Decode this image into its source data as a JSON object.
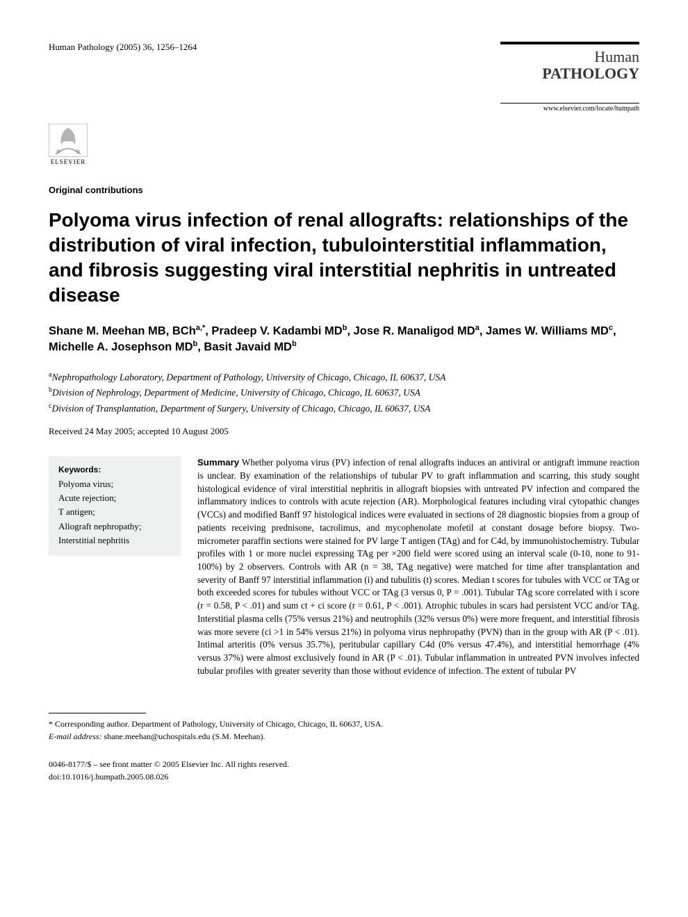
{
  "header": {
    "journal_ref": "Human Pathology (2005) 36, 1256–1264",
    "journal_name_line1": "Human",
    "journal_name_line2": "PATHOLOGY",
    "journal_url": "www.elsevier.com/locate/humpath",
    "publisher": "ELSEVIER"
  },
  "section_label": "Original contributions",
  "title": "Polyoma virus infection of renal allografts: relationships of the distribution of viral infection, tubulointerstitial inflammation, and fibrosis suggesting viral interstitial nephritis in untreated disease",
  "authors_html": "Shane M. Meehan MB, BCh<sup>a,*</sup>, Pradeep V. Kadambi MD<sup>b</sup>, Jose R. Manaligod MD<sup>a</sup>, James W. Williams MD<sup>c</sup>, Michelle A. Josephson MD<sup>b</sup>, Basit Javaid MD<sup>b</sup>",
  "affiliations": [
    {
      "sup": "a",
      "text": "Nephropathology Laboratory, Department of Pathology, University of Chicago, Chicago, IL 60637, USA"
    },
    {
      "sup": "b",
      "text": "Division of Nephrology, Department of Medicine, University of Chicago, Chicago, IL 60637, USA"
    },
    {
      "sup": "c",
      "text": "Division of Transplantation, Department of Surgery, University of Chicago, Chicago, IL 60637, USA"
    }
  ],
  "dates": "Received 24 May 2005; accepted 10 August 2005",
  "keywords": {
    "heading": "Keywords:",
    "list": "Polyoma virus;\nAcute rejection;\nT antigen;\nAllograft nephropathy;\nInterstitial nephritis"
  },
  "summary": {
    "lead": "Summary",
    "body": " Whether polyoma virus (PV) infection of renal allografts induces an antiviral or antigraft immune reaction is unclear. By examination of the relationships of tubular PV to graft inflammation and scarring, this study sought histological evidence of viral interstitial nephritis in allograft biopsies with untreated PV infection and compared the inflammatory indices to controls with acute rejection (AR). Morphological features including viral cytopathic changes (VCCs) and modified Banff 97 histological indices were evaluated in sections of 28 diagnostic biopsies from a group of patients receiving prednisone, tacrolimus, and mycophenolate mofetil at constant dosage before biopsy. Two-micrometer paraffin sections were stained for PV large T antigen (TAg) and for C4d, by immunohistochemistry. Tubular profiles with 1 or more nuclei expressing TAg per ×200 field were scored using an interval scale (0-10, none to 91-100%) by 2 observers. Controls with AR (n = 38, TAg negative) were matched for time after transplantation and severity of Banff 97 interstitial inflammation (i) and tubulitis (t) scores. Median t scores for tubules with VCC or TAg or both exceeded scores for tubules without VCC or TAg (3 versus 0, P = .001). Tubular TAg score correlated with i score (r = 0.58, P < .01) and sum ct + ci score (r = 0.61, P < .001). Atrophic tubules in scars had persistent VCC and/or TAg. Interstitial plasma cells (75% versus 21%) and neutrophils (32% versus 0%) were more frequent, and interstitial fibrosis was more severe (ci >1 in 54% versus 21%) in polyoma virus nephropathy (PVN) than in the group with AR (P < .01). Intimal arteritis (0% versus 35.7%), peritubular capillary C4d (0% versus 47.4%), and interstitial hemorrhage (4% versus 37%) were almost exclusively found in AR (P < .01). Tubular inflammation in untreated PVN involves infected tubular profiles with greater severity than those without evidence of infection. The extent of tubular PV"
  },
  "footnotes": {
    "corresponding": "* Corresponding author. Department of Pathology, University of Chicago, Chicago, IL 60637, USA.",
    "email_label": "E-mail address:",
    "email_value": "shane.meehan@uchospitals.edu (S.M. Meehan)."
  },
  "doi": {
    "line1": "0046-8177/$ – see front matter © 2005 Elsevier Inc. All rights reserved.",
    "line2": "doi:10.1016/j.humpath.2005.08.026"
  },
  "colors": {
    "background": "#ffffff",
    "text": "#000000",
    "keywords_bg": "#eef0ef"
  }
}
